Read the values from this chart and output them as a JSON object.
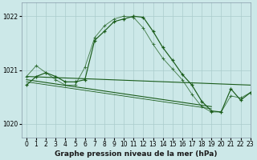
{
  "title": "Graphe pression niveau de la mer (hPa)",
  "bg_color": "#cce8e8",
  "grid_color": "#aacccc",
  "line_color": "#1a5c1a",
  "xlim": [
    -0.5,
    23
  ],
  "ylim": [
    1019.75,
    1022.25
  ],
  "yticks": [
    1020,
    1021,
    1022
  ],
  "xticks": [
    0,
    1,
    2,
    3,
    4,
    5,
    6,
    7,
    8,
    9,
    10,
    11,
    12,
    13,
    14,
    15,
    16,
    17,
    18,
    19,
    20,
    21,
    22,
    23
  ],
  "hours": [
    0,
    1,
    2,
    3,
    4,
    5,
    6,
    7,
    8,
    9,
    10,
    11,
    12,
    13,
    14,
    15,
    16,
    17,
    18,
    19,
    20,
    21,
    22,
    23
  ],
  "curve1": [
    1020.72,
    1020.88,
    1020.95,
    1020.88,
    1020.78,
    1020.78,
    1020.82,
    1021.55,
    1021.72,
    1021.9,
    1021.95,
    1022.0,
    1021.98,
    1021.72,
    1021.42,
    1021.18,
    1020.92,
    1020.72,
    1020.42,
    1020.24,
    1020.22,
    1020.65,
    1020.44,
    1020.58
  ],
  "curve2": [
    1020.88,
    1021.08,
    1020.95,
    1020.82,
    1020.72,
    1020.72,
    1021.05,
    1021.6,
    1021.82,
    1021.95,
    1022.0,
    1021.98,
    1021.78,
    1021.48,
    1021.22,
    1021.02,
    1020.82,
    1020.55,
    1020.32,
    1020.22,
    1020.22,
    1020.52,
    1020.48,
    1020.58
  ],
  "trend1_x": [
    0,
    23
  ],
  "trend1_y": [
    1020.88,
    1020.72
  ],
  "trend2_x": [
    0,
    19
  ],
  "trend2_y": [
    1020.82,
    1020.32
  ],
  "tick_fontsize": 5.5,
  "xlabel_fontsize": 6.5
}
